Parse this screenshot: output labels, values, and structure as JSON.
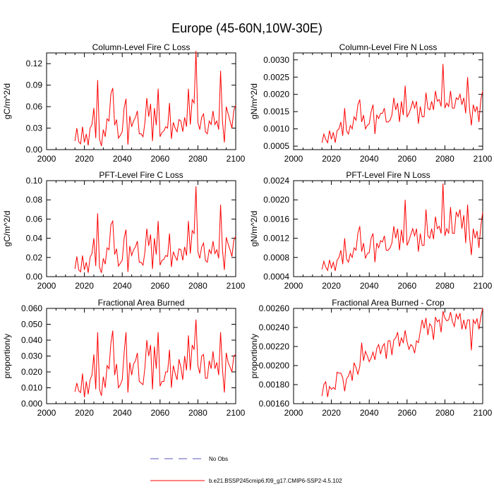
{
  "figure": {
    "title": "Europe (45-60N,10W-30E)",
    "legend": [
      {
        "label": "No Obs",
        "color": "#5555bb",
        "style": "dashed"
      },
      {
        "label": "b.e21.BSSP245cmip6.f09_g17.CMIP6-SSP2-4.5.102",
        "color": "#ff0000",
        "style": "solid"
      }
    ]
  },
  "chart_data": [
    {
      "type": "line",
      "title": "Column-Level Fire C Loss",
      "ylabel": "gC/m^2/d",
      "xlim": [
        2000,
        2100
      ],
      "ylim": [
        0,
        0.135
      ],
      "xticks": [
        "2000",
        "2020",
        "2040",
        "2060",
        "2080",
        "2100"
      ],
      "yticks": [
        {
          "v": 0,
          "label": "0.00"
        },
        {
          "v": 0.03,
          "label": "0.03"
        },
        {
          "v": 0.06,
          "label": "0.06"
        },
        {
          "v": 0.09,
          "label": "0.09"
        },
        {
          "v": 0.12,
          "label": "0.12"
        }
      ],
      "series": [
        {
          "name": "b.e21.BSSP245cmip6.f09_g17.CMIP6-SSP2-4.5.102",
          "color": "#ff0000",
          "x_start": 2015,
          "values": [
            0.012,
            0.03,
            0.011,
            0.008,
            0.032,
            0.01,
            0.022,
            0.006,
            0.03,
            0.035,
            0.058,
            0.016,
            0.097,
            0.015,
            0.005,
            0.028,
            0.018,
            0.043,
            0.04,
            0.078,
            0.086,
            0.034,
            0.042,
            0.016,
            0.02,
            0.025,
            0.058,
            0.071,
            0.007,
            0.047,
            0.032,
            0.04,
            0.045,
            0.054,
            0.022,
            0.022,
            0.018,
            0.038,
            0.072,
            0.046,
            0.064,
            0.012,
            0.058,
            0.034,
            0.085,
            0.018,
            0.024,
            0.026,
            0.032,
            0.03,
            0.065,
            0.015,
            0.038,
            0.03,
            0.025,
            0.042,
            0.04,
            0.025,
            0.045,
            0.032,
            0.085,
            0.035,
            0.07,
            0.065,
            0.138,
            0.038,
            0.028,
            0.045,
            0.05,
            0.025,
            0.022,
            0.04,
            0.035,
            0.054,
            0.035,
            0.04,
            0.028,
            0.11,
            0.04,
            0.01,
            0.06,
            0.05,
            0.04,
            0.03,
            0.055,
            0.062
          ]
        }
      ]
    },
    {
      "type": "line",
      "title": "Column-Level Fire N Loss",
      "ylabel": "gN/m^2/d",
      "xlim": [
        2000,
        2100
      ],
      "ylim": [
        0.0004,
        0.0032
      ],
      "xticks": [
        "2000",
        "2020",
        "2040",
        "2060",
        "2080",
        "2100"
      ],
      "yticks": [
        {
          "v": 0.0005,
          "label": "0.0005"
        },
        {
          "v": 0.001,
          "label": "0.0010"
        },
        {
          "v": 0.0015,
          "label": "0.0015"
        },
        {
          "v": 0.002,
          "label": "0.0020"
        },
        {
          "v": 0.0025,
          "label": "0.0025"
        },
        {
          "v": 0.003,
          "label": "0.0030"
        }
      ],
      "series": [
        {
          "name": "b.e21.BSSP245cmip6.f09_g17.CMIP6-SSP2-4.5.102",
          "color": "#ff0000",
          "x_start": 2015,
          "values": [
            0.0006,
            0.00085,
            0.0007,
            0.0006,
            0.00095,
            0.0007,
            0.0009,
            0.0006,
            0.00095,
            0.001,
            0.0012,
            0.0008,
            0.0016,
            0.00095,
            0.00085,
            0.0011,
            0.001,
            0.00135,
            0.00125,
            0.0017,
            0.00185,
            0.0012,
            0.0014,
            0.001,
            0.0011,
            0.00115,
            0.0015,
            0.0017,
            0.00085,
            0.0014,
            0.0013,
            0.00145,
            0.00145,
            0.0016,
            0.0012,
            0.0012,
            0.00125,
            0.0014,
            0.0019,
            0.00155,
            0.00175,
            0.0012,
            0.0018,
            0.0014,
            0.00225,
            0.00135,
            0.00145,
            0.0016,
            0.0018,
            0.0016,
            0.0018,
            0.00115,
            0.00165,
            0.00135,
            0.00135,
            0.00205,
            0.0016,
            0.00155,
            0.0018,
            0.00155,
            0.0021,
            0.0018,
            0.00185,
            0.00165,
            0.00288,
            0.0016,
            0.00175,
            0.00165,
            0.0021,
            0.0016,
            0.0016,
            0.0019,
            0.00185,
            0.002,
            0.0017,
            0.0019,
            0.00145,
            0.0025,
            0.0016,
            0.0011,
            0.0017,
            0.0015,
            0.00165,
            0.0012,
            0.00185,
            0.0021
          ]
        }
      ]
    },
    {
      "type": "line",
      "title": "PFT-Level Fire C Loss",
      "ylabel": "gC/m^2/d",
      "xlim": [
        2000,
        2100
      ],
      "ylim": [
        0,
        0.1
      ],
      "xticks": [
        "2000",
        "2020",
        "2040",
        "2060",
        "2080",
        "2100"
      ],
      "yticks": [
        {
          "v": 0,
          "label": "0.00"
        },
        {
          "v": 0.02,
          "label": "0.02"
        },
        {
          "v": 0.04,
          "label": "0.04"
        },
        {
          "v": 0.06,
          "label": "0.06"
        },
        {
          "v": 0.08,
          "label": "0.08"
        },
        {
          "v": 0.1,
          "label": "0.10"
        }
      ],
      "series": [
        {
          "name": "b.e21.BSSP245cmip6.f09_g17.CMIP6-SSP2-4.5.102",
          "color": "#ff0000",
          "x_start": 2015,
          "values": [
            0.008,
            0.021,
            0.007,
            0.005,
            0.022,
            0.007,
            0.015,
            0.004,
            0.02,
            0.024,
            0.04,
            0.011,
            0.066,
            0.01,
            0.004,
            0.019,
            0.013,
            0.03,
            0.028,
            0.054,
            0.058,
            0.023,
            0.029,
            0.011,
            0.014,
            0.017,
            0.04,
            0.049,
            0.005,
            0.032,
            0.022,
            0.028,
            0.031,
            0.037,
            0.015,
            0.015,
            0.012,
            0.026,
            0.05,
            0.032,
            0.044,
            0.008,
            0.04,
            0.023,
            0.058,
            0.012,
            0.017,
            0.018,
            0.022,
            0.021,
            0.045,
            0.01,
            0.026,
            0.021,
            0.017,
            0.029,
            0.028,
            0.017,
            0.031,
            0.022,
            0.058,
            0.024,
            0.048,
            0.045,
            0.094,
            0.026,
            0.019,
            0.031,
            0.035,
            0.017,
            0.015,
            0.028,
            0.024,
            0.037,
            0.024,
            0.028,
            0.019,
            0.075,
            0.028,
            0.007,
            0.041,
            0.034,
            0.028,
            0.021,
            0.038,
            0.042
          ]
        }
      ]
    },
    {
      "type": "line",
      "title": "PFT-Level Fire N Loss",
      "ylabel": "gN/m^2/d",
      "xlim": [
        2000,
        2100
      ],
      "ylim": [
        0.0004,
        0.0024
      ],
      "xticks": [
        "2000",
        "2020",
        "2040",
        "2060",
        "2080",
        "2100"
      ],
      "yticks": [
        {
          "v": 0.0004,
          "label": "0.0004"
        },
        {
          "v": 0.0008,
          "label": "0.0008"
        },
        {
          "v": 0.0012,
          "label": "0.0012"
        },
        {
          "v": 0.0016,
          "label": "0.0016"
        },
        {
          "v": 0.002,
          "label": "0.0020"
        },
        {
          "v": 0.0024,
          "label": "0.0024"
        }
      ],
      "series": [
        {
          "name": "b.e21.BSSP245cmip6.f09_g17.CMIP6-SSP2-4.5.102",
          "color": "#ff0000",
          "x_start": 2015,
          "values": [
            0.00055,
            0.00072,
            0.0006,
            0.00053,
            0.00075,
            0.00058,
            0.0007,
            0.00052,
            0.00074,
            0.0008,
            0.00095,
            0.00066,
            0.0012,
            0.00077,
            0.0007,
            0.00088,
            0.0008,
            0.001,
            0.00095,
            0.0013,
            0.00145,
            0.00092,
            0.0011,
            0.00078,
            0.00088,
            0.0009,
            0.0012,
            0.0013,
            0.0007,
            0.0011,
            0.001,
            0.00115,
            0.00112,
            0.00125,
            0.00095,
            0.00095,
            0.001,
            0.0011,
            0.00145,
            0.0012,
            0.0014,
            0.00095,
            0.00138,
            0.0011,
            0.002,
            0.00105,
            0.00115,
            0.00128,
            0.0014,
            0.00125,
            0.0014,
            0.00092,
            0.0013,
            0.00105,
            0.00105,
            0.0018,
            0.00125,
            0.0012,
            0.0014,
            0.00118,
            0.00165,
            0.0014,
            0.00145,
            0.0013,
            0.00234,
            0.00125,
            0.0014,
            0.0013,
            0.00185,
            0.0013,
            0.0013,
            0.00175,
            0.00165,
            0.0018,
            0.0014,
            0.00168,
            0.0011,
            0.0019,
            0.00125,
            0.00085,
            0.0014,
            0.0012,
            0.00135,
            0.001,
            0.00145,
            0.00175
          ]
        }
      ]
    },
    {
      "type": "line",
      "title": "Fractional Area Burned",
      "ylabel": "proportion/y",
      "xlim": [
        2000,
        2100
      ],
      "ylim": [
        0,
        0.06
      ],
      "xticks": [
        "2000",
        "2020",
        "2040",
        "2060",
        "2080",
        "2100"
      ],
      "yticks": [
        {
          "v": 0,
          "label": "0.000"
        },
        {
          "v": 0.01,
          "label": "0.010"
        },
        {
          "v": 0.02,
          "label": "0.020"
        },
        {
          "v": 0.03,
          "label": "0.030"
        },
        {
          "v": 0.04,
          "label": "0.040"
        },
        {
          "v": 0.05,
          "label": "0.050"
        },
        {
          "v": 0.06,
          "label": "0.060"
        }
      ],
      "series": [
        {
          "name": "b.e21.BSSP245cmip6.f09_g17.CMIP6-SSP2-4.5.102",
          "color": "#ff0000",
          "x_start": 2015,
          "values": [
            0.0075,
            0.013,
            0.008,
            0.007,
            0.019,
            0.004,
            0.014,
            0.006,
            0.015,
            0.018,
            0.031,
            0.009,
            0.045,
            0.009,
            0.005,
            0.017,
            0.01,
            0.024,
            0.022,
            0.038,
            0.046,
            0.018,
            0.025,
            0.01,
            0.012,
            0.015,
            0.032,
            0.045,
            0.007,
            0.026,
            0.018,
            0.025,
            0.027,
            0.032,
            0.014,
            0.013,
            0.012,
            0.023,
            0.04,
            0.03,
            0.037,
            0.009,
            0.036,
            0.022,
            0.045,
            0.011,
            0.014,
            0.014,
            0.02,
            0.02,
            0.034,
            0.01,
            0.024,
            0.019,
            0.015,
            0.028,
            0.023,
            0.015,
            0.03,
            0.021,
            0.043,
            0.021,
            0.037,
            0.034,
            0.053,
            0.024,
            0.019,
            0.03,
            0.031,
            0.016,
            0.016,
            0.027,
            0.022,
            0.033,
            0.022,
            0.026,
            0.018,
            0.045,
            0.022,
            0.007,
            0.032,
            0.026,
            0.023,
            0.02,
            0.03,
            0.031
          ]
        }
      ]
    },
    {
      "type": "line",
      "title": "Fractional Area Burned - Crop",
      "ylabel": "proportion/y",
      "xlim": [
        2000,
        2100
      ],
      "ylim": [
        0.0016,
        0.0026
      ],
      "xticks": [
        "2000",
        "2020",
        "2040",
        "2060",
        "2080",
        "2100"
      ],
      "yticks": [
        {
          "v": 0.0016,
          "label": "0.00160"
        },
        {
          "v": 0.0018,
          "label": "0.00180"
        },
        {
          "v": 0.002,
          "label": "0.00200"
        },
        {
          "v": 0.0022,
          "label": "0.00220"
        },
        {
          "v": 0.0024,
          "label": "0.00240"
        },
        {
          "v": 0.0026,
          "label": "0.00260"
        }
      ],
      "series": [
        {
          "name": "b.e21.BSSP245cmip6.f09_g17.CMIP6-SSP2-4.5.102",
          "color": "#ff0000",
          "x_start": 2015,
          "values": [
            0.00168,
            0.0018,
            0.00183,
            0.00167,
            0.00178,
            0.00175,
            0.00177,
            0.00175,
            0.00193,
            0.00192,
            0.00192,
            0.00187,
            0.00173,
            0.00186,
            0.00189,
            0.00195,
            0.00184,
            0.00203,
            0.00198,
            0.00191,
            0.00199,
            0.00224,
            0.00205,
            0.00215,
            0.0021,
            0.00204,
            0.00208,
            0.00214,
            0.00206,
            0.00218,
            0.00222,
            0.00212,
            0.0022,
            0.00223,
            0.00207,
            0.00226,
            0.00226,
            0.00211,
            0.00227,
            0.00229,
            0.00235,
            0.0022,
            0.00229,
            0.00224,
            0.00237,
            0.00225,
            0.00217,
            0.00222,
            0.0022,
            0.00213,
            0.00226,
            0.00224,
            0.00236,
            0.00248,
            0.00239,
            0.0025,
            0.00232,
            0.00244,
            0.00241,
            0.00227,
            0.00251,
            0.00246,
            0.00248,
            0.00235,
            0.00257,
            0.0025,
            0.00247,
            0.00248,
            0.00256,
            0.00246,
            0.00241,
            0.00254,
            0.00249,
            0.00255,
            0.00238,
            0.00248,
            0.00238,
            0.00248,
            0.00248,
            0.00216,
            0.00248,
            0.00244,
            0.00249,
            0.00238,
            0.00251,
            0.0026
          ]
        }
      ]
    }
  ]
}
